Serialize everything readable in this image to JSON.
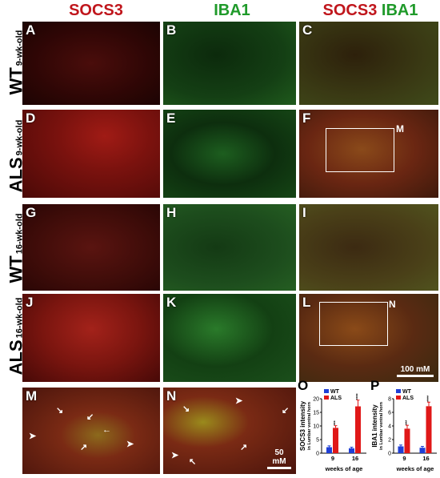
{
  "headers": {
    "col1": "SOCS3",
    "col2": "IBA1",
    "col3_red": "SOCS3",
    "col3_green": "IBA1"
  },
  "rows": [
    {
      "main": "WT",
      "sub": "9-wk-old"
    },
    {
      "main": "ALS",
      "sub": "9-wk-old"
    },
    {
      "main": "WT",
      "sub": "16-wk-old"
    },
    {
      "main": "ALS",
      "sub": "16-wk-old"
    }
  ],
  "panels": {
    "A": "A",
    "B": "B",
    "C": "C",
    "D": "D",
    "E": "E",
    "F": "F",
    "G": "G",
    "H": "H",
    "I": "I",
    "J": "J",
    "K": "K",
    "L": "L",
    "M": "M",
    "N": "N",
    "O": "O",
    "P": "P"
  },
  "insets": {
    "F_box_label": "M",
    "L_box_label": "N"
  },
  "scalebars": {
    "main": "100 mM",
    "inset": "50 mM"
  },
  "colors": {
    "red": "#c0161c",
    "green": "#1f9a2a",
    "wt_bar": "#1f3fd6",
    "als_bar": "#e01818"
  },
  "chart_data": [
    {
      "type": "bar",
      "panel": "O",
      "ylabel": "SOCS3 intensity",
      "ylabel_sub": "in Lumbar ventral horn",
      "xlabel": "weeks of age",
      "categories": [
        "9",
        "16"
      ],
      "ylim": [
        0,
        20
      ],
      "yticks": [
        0,
        5,
        10,
        15,
        20
      ],
      "series": [
        {
          "name": "WT",
          "values": [
            2.2,
            1.8
          ],
          "errors": [
            0.5,
            0.4
          ]
        },
        {
          "name": "ALS",
          "values": [
            9.3,
            17.2
          ],
          "errors": [
            0.8,
            2.3
          ]
        }
      ],
      "significance": [
        "***",
        "****"
      ]
    },
    {
      "type": "bar",
      "panel": "P",
      "ylabel": "IBA1 intensity",
      "ylabel_sub": "in Lumbar ventral horn",
      "xlabel": "weeks of age",
      "categories": [
        "9",
        "16"
      ],
      "ylim": [
        0,
        8
      ],
      "yticks": [
        0,
        2,
        4,
        6,
        8
      ],
      "series": [
        {
          "name": "WT",
          "values": [
            1.0,
            0.8
          ],
          "errors": [
            0.2,
            0.2
          ]
        },
        {
          "name": "ALS",
          "values": [
            3.6,
            6.9
          ],
          "errors": [
            0.5,
            0.6
          ]
        }
      ],
      "significance": [
        "***",
        "****"
      ]
    }
  ]
}
